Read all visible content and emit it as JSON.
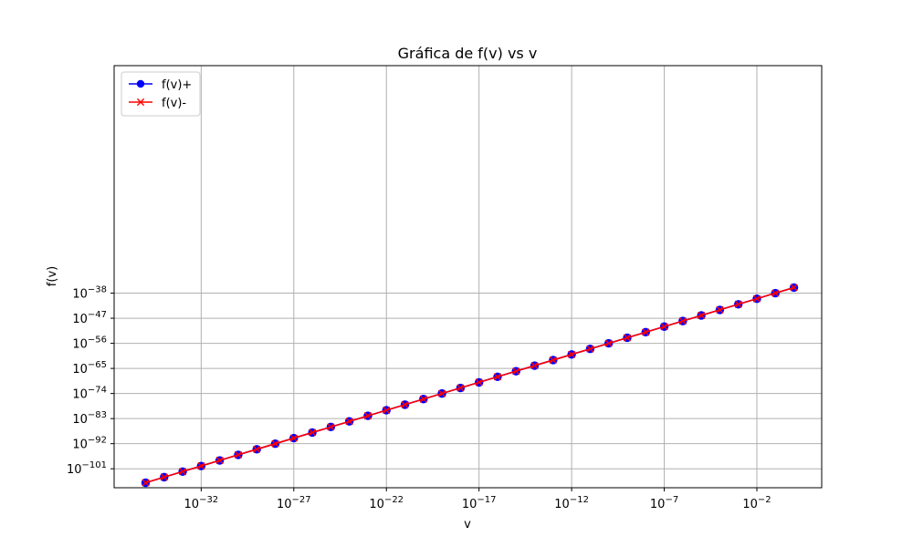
{
  "chart_data": {
    "type": "line",
    "title": "Gráfica de f(v) vs v",
    "xlabel": "v",
    "ylabel": "f(v)",
    "xscale": "log",
    "yscale": "log",
    "xlim_exp": [
      -36.7,
      1.5
    ],
    "ylim_exp": [
      -107.8,
      43.6
    ],
    "grid": true,
    "legend_position": "upper left",
    "x_ticks": [
      {
        "exp": -32,
        "label_base": "10",
        "label_exp": "−32"
      },
      {
        "exp": -27,
        "label_base": "10",
        "label_exp": "−27"
      },
      {
        "exp": -22,
        "label_base": "10",
        "label_exp": "−22"
      },
      {
        "exp": -17,
        "label_base": "10",
        "label_exp": "−17"
      },
      {
        "exp": -12,
        "label_base": "10",
        "label_exp": "−12"
      },
      {
        "exp": -7,
        "label_base": "10",
        "label_exp": "−7"
      },
      {
        "exp": -2,
        "label_base": "10",
        "label_exp": "−2"
      }
    ],
    "y_ticks": [
      {
        "exp": -38,
        "label_base": "10",
        "label_exp": "−38"
      },
      {
        "exp": -47,
        "label_base": "10",
        "label_exp": "−47"
      },
      {
        "exp": -56,
        "label_base": "10",
        "label_exp": "−56"
      },
      {
        "exp": -65,
        "label_base": "10",
        "label_exp": "−65"
      },
      {
        "exp": -74,
        "label_base": "10",
        "label_exp": "−74"
      },
      {
        "exp": -83,
        "label_base": "10",
        "label_exp": "−83"
      },
      {
        "exp": -92,
        "label_base": "10",
        "label_exp": "−92"
      },
      {
        "exp": -101,
        "label_base": "10",
        "label_exp": "−101"
      }
    ],
    "x_exp": [
      -35,
      -34,
      -33,
      -32,
      -31,
      -30,
      -29,
      -28,
      -27,
      -26,
      -25,
      -24,
      -23,
      -22,
      -21,
      -20,
      -19,
      -18,
      -17,
      -16,
      -15,
      -14,
      -13,
      -12,
      -11,
      -10,
      -9,
      -8,
      -7,
      -6,
      -5,
      -4,
      -3,
      -2,
      -1,
      0
    ],
    "series": [
      {
        "name": "f(v)+",
        "color": "#0000ff",
        "marker": "circle",
        "y_exp": [
          -106,
          -104,
          -102,
          -100,
          -98,
          -96,
          -94,
          -92,
          -90,
          -88,
          -86,
          -84,
          -82,
          -80,
          -78,
          -76,
          -74,
          -72,
          -70,
          -68,
          -66,
          -64,
          -62,
          -60,
          -58,
          -56,
          -54,
          -52,
          -50,
          -48,
          -46,
          -44,
          -42,
          -40,
          -38,
          -36
        ]
      },
      {
        "name": "f(v)-",
        "color": "#ff0000",
        "marker": "x",
        "y_exp": [
          -106,
          -104,
          -102,
          -100,
          -98,
          -96,
          -94,
          -92,
          -90,
          -88,
          -86,
          -84,
          -82,
          -80,
          -78,
          -76,
          -74,
          -72,
          -70,
          -68,
          -66,
          -64,
          -62,
          -60,
          -58,
          -56,
          -54,
          -52,
          -50,
          -48,
          -46,
          -44,
          -42,
          -40,
          -38,
          -36
        ]
      }
    ]
  }
}
